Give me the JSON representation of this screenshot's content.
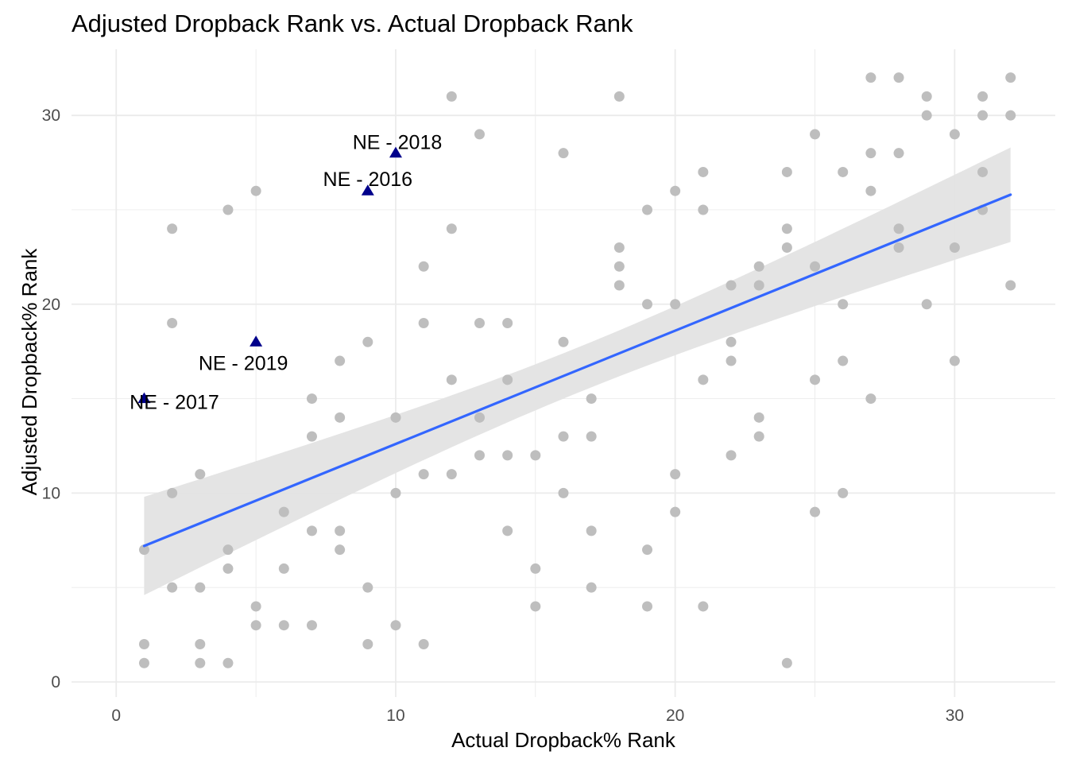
{
  "chart_data": {
    "type": "scatter",
    "title": "Adjusted Dropback Rank vs. Actual Dropback Rank",
    "xlabel": "Actual Dropback% Rank",
    "ylabel": "Adjusted Dropback% Rank",
    "xlim": [
      -1.6,
      33.6
    ],
    "ylim": [
      -0.8,
      33.5
    ],
    "x_ticks": [
      0,
      10,
      20,
      30
    ],
    "y_ticks": [
      0,
      10,
      20,
      30
    ],
    "grid": true,
    "colors": {
      "points": "#bebebe",
      "highlight": "#00008b",
      "trend": "#3366ff",
      "band": "#e3e3e3",
      "grid": "#ebebeb"
    },
    "points": [
      [
        1,
        7
      ],
      [
        1,
        2
      ],
      [
        1,
        1
      ],
      [
        2,
        24
      ],
      [
        2,
        19
      ],
      [
        2,
        10
      ],
      [
        2,
        5
      ],
      [
        3,
        11
      ],
      [
        3,
        5
      ],
      [
        3,
        2
      ],
      [
        3,
        1
      ],
      [
        4,
        25
      ],
      [
        4,
        7
      ],
      [
        4,
        6
      ],
      [
        4,
        1
      ],
      [
        5,
        26
      ],
      [
        5,
        4
      ],
      [
        5,
        3
      ],
      [
        6,
        9
      ],
      [
        6,
        6
      ],
      [
        6,
        3
      ],
      [
        7,
        15
      ],
      [
        7,
        13
      ],
      [
        7,
        8
      ],
      [
        7,
        3
      ],
      [
        8,
        17
      ],
      [
        8,
        14
      ],
      [
        8,
        8
      ],
      [
        8,
        7
      ],
      [
        9,
        18
      ],
      [
        9,
        5
      ],
      [
        9,
        2
      ],
      [
        10,
        14
      ],
      [
        10,
        10
      ],
      [
        10,
        3
      ],
      [
        11,
        22
      ],
      [
        11,
        19
      ],
      [
        11,
        11
      ],
      [
        11,
        2
      ],
      [
        12,
        31
      ],
      [
        12,
        24
      ],
      [
        12,
        16
      ],
      [
        12,
        11
      ],
      [
        13,
        29
      ],
      [
        13,
        19
      ],
      [
        13,
        14
      ],
      [
        13,
        12
      ],
      [
        14,
        19
      ],
      [
        14,
        16
      ],
      [
        14,
        12
      ],
      [
        14,
        8
      ],
      [
        15,
        12
      ],
      [
        15,
        6
      ],
      [
        15,
        4
      ],
      [
        16,
        28
      ],
      [
        16,
        18
      ],
      [
        16,
        13
      ],
      [
        16,
        10
      ],
      [
        17,
        15
      ],
      [
        17,
        13
      ],
      [
        17,
        8
      ],
      [
        17,
        5
      ],
      [
        18,
        31
      ],
      [
        18,
        23
      ],
      [
        18,
        22
      ],
      [
        18,
        21
      ],
      [
        19,
        25
      ],
      [
        19,
        20
      ],
      [
        19,
        7
      ],
      [
        19,
        4
      ],
      [
        20,
        26
      ],
      [
        20,
        20
      ],
      [
        20,
        11
      ],
      [
        20,
        9
      ],
      [
        21,
        27
      ],
      [
        21,
        25
      ],
      [
        21,
        16
      ],
      [
        21,
        4
      ],
      [
        22,
        21
      ],
      [
        22,
        18
      ],
      [
        22,
        17
      ],
      [
        22,
        12
      ],
      [
        23,
        22
      ],
      [
        23,
        21
      ],
      [
        23,
        14
      ],
      [
        23,
        13
      ],
      [
        24,
        27
      ],
      [
        24,
        24
      ],
      [
        24,
        23
      ],
      [
        24,
        1
      ],
      [
        25,
        29
      ],
      [
        25,
        22
      ],
      [
        25,
        16
      ],
      [
        25,
        9
      ],
      [
        26,
        27
      ],
      [
        26,
        20
      ],
      [
        26,
        17
      ],
      [
        26,
        10
      ],
      [
        27,
        32
      ],
      [
        27,
        28
      ],
      [
        27,
        26
      ],
      [
        27,
        15
      ],
      [
        28,
        32
      ],
      [
        28,
        28
      ],
      [
        28,
        24
      ],
      [
        28,
        23
      ],
      [
        29,
        31
      ],
      [
        29,
        30
      ],
      [
        29,
        20
      ],
      [
        30,
        29
      ],
      [
        30,
        23
      ],
      [
        30,
        17
      ],
      [
        31,
        31
      ],
      [
        31,
        30
      ],
      [
        31,
        27
      ],
      [
        31,
        25
      ],
      [
        32,
        32
      ],
      [
        32,
        30
      ],
      [
        32,
        21
      ]
    ],
    "highlighted": [
      {
        "label": "NE - 2018",
        "x": 10,
        "y": 28
      },
      {
        "label": "NE - 2016",
        "x": 9,
        "y": 26
      },
      {
        "label": "NE - 2019",
        "x": 5,
        "y": 18
      },
      {
        "label": "NE - 2017",
        "x": 1,
        "y": 15
      }
    ],
    "trend_line": {
      "x": [
        1,
        32
      ],
      "y": [
        7.2,
        25.8
      ],
      "band_lower": [
        4.6,
        23.3
      ],
      "band_upper": [
        9.8,
        28.3
      ],
      "band_center_x": 16.5,
      "band_center_halfwidth": 1.2
    }
  }
}
